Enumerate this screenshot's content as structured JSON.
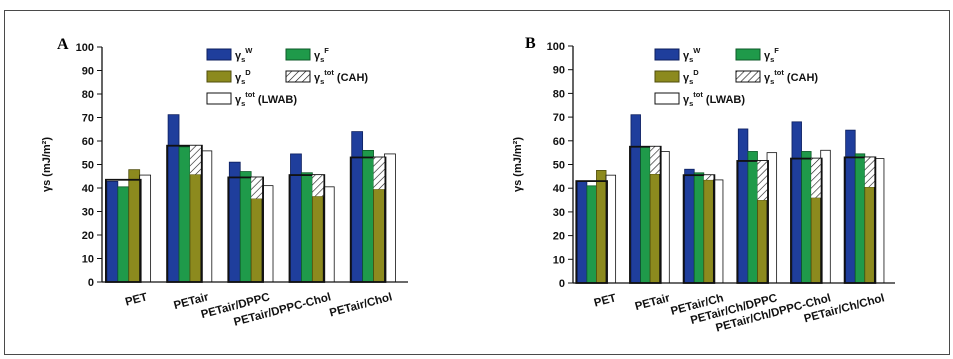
{
  "colors": {
    "gamma_w": "#1f3e9c",
    "gamma_f": "#1f9a4a",
    "gamma_d": "#8c8a1e",
    "tot_cah": "#ffffff",
    "tot_lwab": "#ffffff",
    "frame": "#4a4a4a"
  },
  "legend_entries": [
    {
      "key": "gamma_w",
      "base": "γ",
      "sub": "s",
      "sup": "W",
      "suffix": ""
    },
    {
      "key": "gamma_f",
      "base": "γ",
      "sub": "s",
      "sup": "F",
      "suffix": ""
    },
    {
      "key": "gamma_d",
      "base": "γ",
      "sub": "s",
      "sup": "D",
      "suffix": ""
    },
    {
      "key": "tot_cah",
      "base": "γ",
      "sub": "s",
      "sup": "tot",
      "suffix": " (CAH)"
    },
    {
      "key": "tot_lwab",
      "base": "γ",
      "sub": "s",
      "sup": "tot",
      "suffix": " (LWAB)"
    }
  ],
  "chart_data": [
    {
      "panel": "A",
      "type": "bar",
      "ylabel": "γs (mJ/m²)",
      "ylim": [
        0,
        100
      ],
      "yticks": [
        0,
        10,
        20,
        30,
        40,
        50,
        60,
        70,
        80,
        90,
        100
      ],
      "legend_placement": "top-center",
      "categories": [
        "PET",
        "PETair",
        "PETair/DPPC",
        "PETair/DPPC-Chol",
        "PETair/Chol"
      ],
      "series": [
        {
          "key": "gamma_w",
          "values": [
            42.8,
            71.2,
            51.0,
            54.5,
            64.0
          ]
        },
        {
          "key": "gamma_f",
          "values": [
            40.5,
            57.5,
            47.0,
            46.5,
            56.0
          ]
        },
        {
          "key": "gamma_d",
          "values": [
            47.8,
            45.8,
            35.5,
            36.5,
            39.5
          ]
        },
        {
          "key": "tot_cah",
          "values": [
            43.5,
            58.0,
            44.5,
            45.5,
            53.0
          ],
          "overlay": true
        },
        {
          "key": "tot_lwab",
          "values": [
            45.5,
            55.8,
            41.0,
            40.5,
            54.5
          ]
        }
      ]
    },
    {
      "panel": "B",
      "type": "bar",
      "ylabel": "γs (mJ/m²)",
      "ylim": [
        0,
        100
      ],
      "yticks": [
        0,
        10,
        20,
        30,
        40,
        50,
        60,
        70,
        80,
        90,
        100
      ],
      "legend_placement": "top-center",
      "categories": [
        "PET",
        "PETair",
        "PETair/Ch",
        "PETair/Ch/DPPC",
        "PETair/Ch/DPPC-Chol",
        "PETair/Ch/Chol"
      ],
      "series": [
        {
          "key": "gamma_w",
          "values": [
            42.8,
            71.0,
            48.0,
            65.0,
            68.0,
            64.5
          ]
        },
        {
          "key": "gamma_f",
          "values": [
            41.0,
            57.5,
            46.5,
            55.5,
            55.5,
            54.5
          ]
        },
        {
          "key": "gamma_d",
          "values": [
            47.5,
            46.0,
            43.5,
            35.0,
            36.0,
            40.5
          ]
        },
        {
          "key": "tot_cah",
          "values": [
            43.0,
            57.5,
            45.5,
            51.5,
            52.5,
            53.0
          ],
          "overlay": true
        },
        {
          "key": "tot_lwab",
          "values": [
            45.5,
            55.5,
            43.5,
            55.0,
            56.0,
            52.5
          ]
        }
      ]
    }
  ]
}
